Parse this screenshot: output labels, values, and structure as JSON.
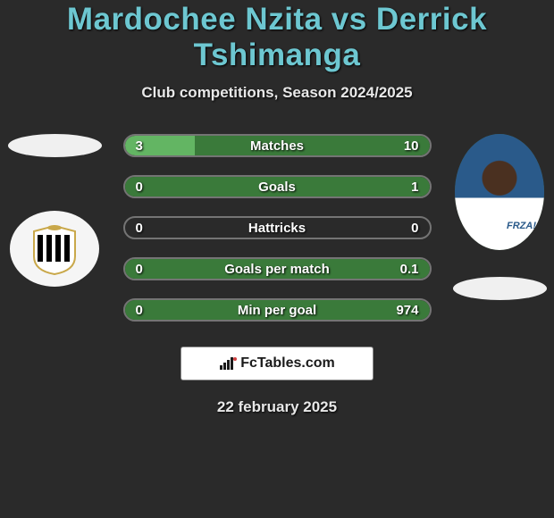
{
  "title": "Mardochee Nzita vs Derrick Tshimanga",
  "title_color": "#6dc7d1",
  "subtitle": "Club competitions, Season 2024/2025",
  "date": "22 february 2025",
  "footer_brand": "FcTables.com",
  "background_color": "#2a2a2a",
  "bar_border_color": "rgba(255,255,255,0.35)",
  "player_left": {
    "name": "Mardochee Nzita",
    "club_badge_bg": "#f5f5f5",
    "shield_outline": "#c9a84a",
    "shield_stripes": [
      "#000000",
      "#ffffff"
    ]
  },
  "player_right": {
    "name": "Derrick Tshimanga",
    "jersey_color": "#2a5a8a",
    "sponsor_text": "FRZA!"
  },
  "stats": [
    {
      "label": "Matches",
      "left_value": "3",
      "right_value": "10",
      "left_num": 3,
      "right_num": 10,
      "left_pct": 23,
      "right_pct": 77,
      "left_color": "#63b563",
      "right_color": "#3a7a3a"
    },
    {
      "label": "Goals",
      "left_value": "0",
      "right_value": "1",
      "left_num": 0,
      "right_num": 1,
      "left_pct": 0,
      "right_pct": 100,
      "left_color": "#2a2a2a",
      "right_color": "#3a7a3a"
    },
    {
      "label": "Hattricks",
      "left_value": "0",
      "right_value": "0",
      "left_num": 0,
      "right_num": 0,
      "left_pct": 0,
      "right_pct": 0,
      "left_color": "#2a2a2a",
      "right_color": "#2a2a2a"
    },
    {
      "label": "Goals per match",
      "left_value": "0",
      "right_value": "0.1",
      "left_num": 0,
      "right_num": 0.1,
      "left_pct": 0,
      "right_pct": 100,
      "left_color": "#2a2a2a",
      "right_color": "#3a7a3a"
    },
    {
      "label": "Min per goal",
      "left_value": "0",
      "right_value": "974",
      "left_num": 0,
      "right_num": 974,
      "left_pct": 0,
      "right_pct": 100,
      "left_color": "#2a2a2a",
      "right_color": "#3a7a3a"
    }
  ]
}
